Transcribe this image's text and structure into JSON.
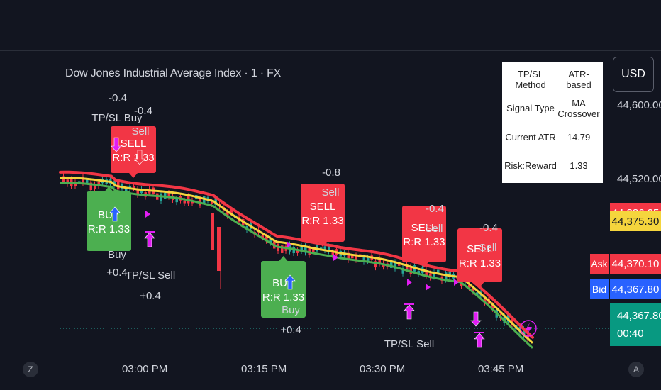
{
  "symbol_title": "Dow Jones Industrial Average Index · 1 · FX",
  "currency_button": "USD",
  "info_table": [
    {
      "key": "TP/SL Method",
      "value": "ATR-based"
    },
    {
      "key": "Signal Type",
      "value": "MA Crossover"
    },
    {
      "key": "Current ATR",
      "value": "14.79"
    },
    {
      "key": "Risk:Reward",
      "value": "1.33"
    }
  ],
  "price_axis": {
    "labels": [
      "44,600.00",
      "44,520.00"
    ],
    "boxes": [
      {
        "value": "44,386.25",
        "bg": "#f23645",
        "fg": "#ffffff"
      },
      {
        "value": "44,375.30",
        "bg": "#f5d53d",
        "fg": "#131722"
      },
      {
        "value": "44,370.10",
        "bg": "#f23645",
        "fg": "#ffffff"
      },
      {
        "value": "44,367.80",
        "bg": "#2962ff",
        "fg": "#ffffff"
      }
    ],
    "ask_label": "Ask",
    "bid_label": "Bid",
    "last_price": "44,367.80",
    "countdown": "00:40"
  },
  "time_axis": [
    "03:00 PM",
    "03:15 PM",
    "03:30 PM",
    "03:45 PM"
  ],
  "corner_left": "Z",
  "corner_right": "A",
  "colors": {
    "bull": "#26a69a",
    "bear": "#f23645",
    "buy_label": "#4caf50",
    "sell_label": "#f23645",
    "ma_fast": "#4caf50",
    "ma_mid": "#f5d53d",
    "ma_slow": "#f23645",
    "tpsl": "#e11df2"
  },
  "annotations": {
    "sell_labels": [
      {
        "line1": "SELL",
        "line2": "R:R 1.33"
      },
      {
        "line1": "SELL",
        "line2": "R:R 1.33"
      },
      {
        "line1": "SELL",
        "line2": "R:R 1.33"
      },
      {
        "line1": "SELL",
        "line2": "R:R 1.33"
      }
    ],
    "buy_labels": [
      {
        "line1": "BUY",
        "line2": "R:R 1.33"
      },
      {
        "line1": "BUY",
        "line2": "R:R 1.33"
      }
    ],
    "texts": [
      "-0.4",
      "TP/SL Buy",
      "-0.4",
      "Sell",
      "Buy",
      "+0.4",
      "TP/SL Sell",
      "+0.4",
      "-0.8",
      "Sell",
      "Buy",
      "+0.4",
      "-0.4",
      "Sell",
      "-0.4",
      "Sell",
      "TP/SL Sell"
    ]
  }
}
